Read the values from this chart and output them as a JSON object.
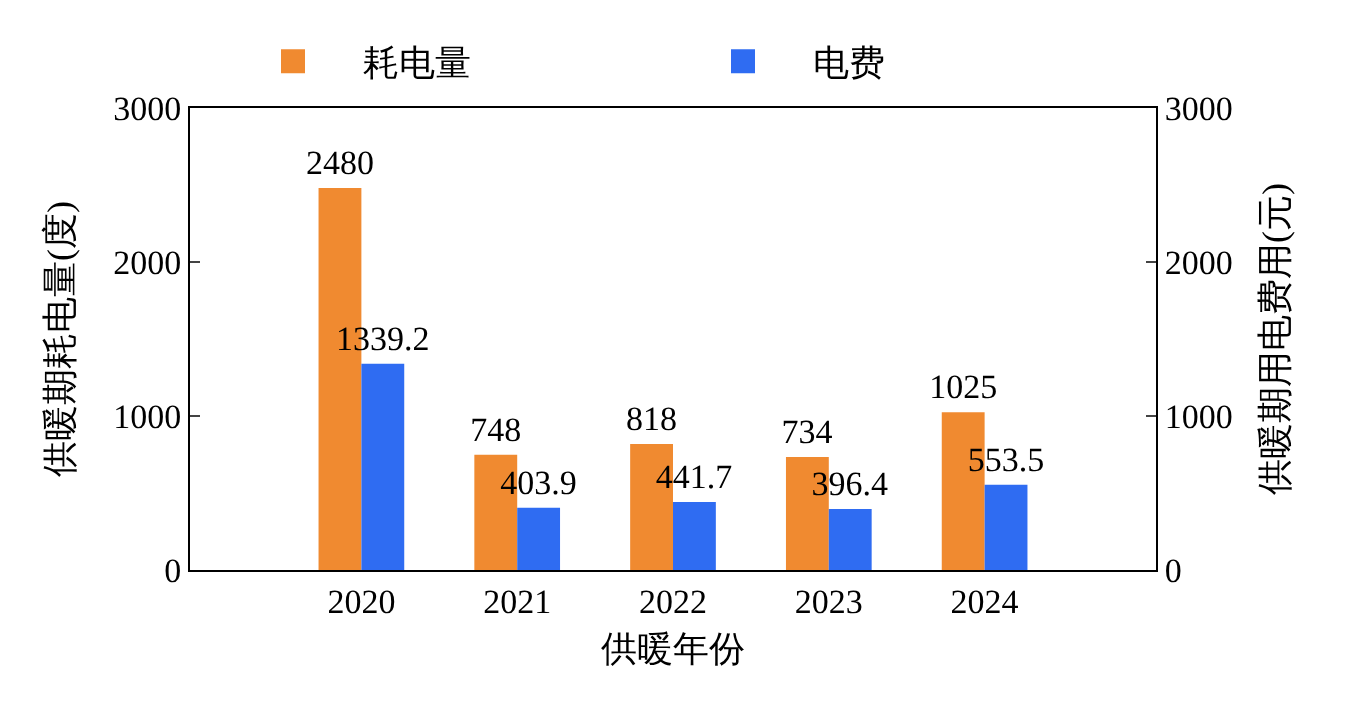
{
  "chart_data": {
    "type": "bar",
    "categories": [
      "2020",
      "2021",
      "2022",
      "2023",
      "2024"
    ],
    "series": [
      {
        "name": "耗电量",
        "color": "#f08a30",
        "values": [
          2480,
          748,
          818,
          734,
          1025
        ]
      },
      {
        "name": "电费",
        "color": "#2f6cf2",
        "values": [
          1339.2,
          403.9,
          441.7,
          396.4,
          553.5
        ],
        "axis": "y2"
      }
    ],
    "xlabel": "供暖年份",
    "ylabel": "供暖期耗电量(度)",
    "y2label": "供暖期用电费用(元)",
    "ylim": [
      0,
      3000
    ],
    "yticks": [
      0,
      1000,
      2000,
      3000
    ],
    "y2lim": [
      0,
      3000
    ],
    "y2ticks": [
      0,
      1000,
      2000,
      3000
    ],
    "data_labels": true,
    "legend": "top"
  }
}
